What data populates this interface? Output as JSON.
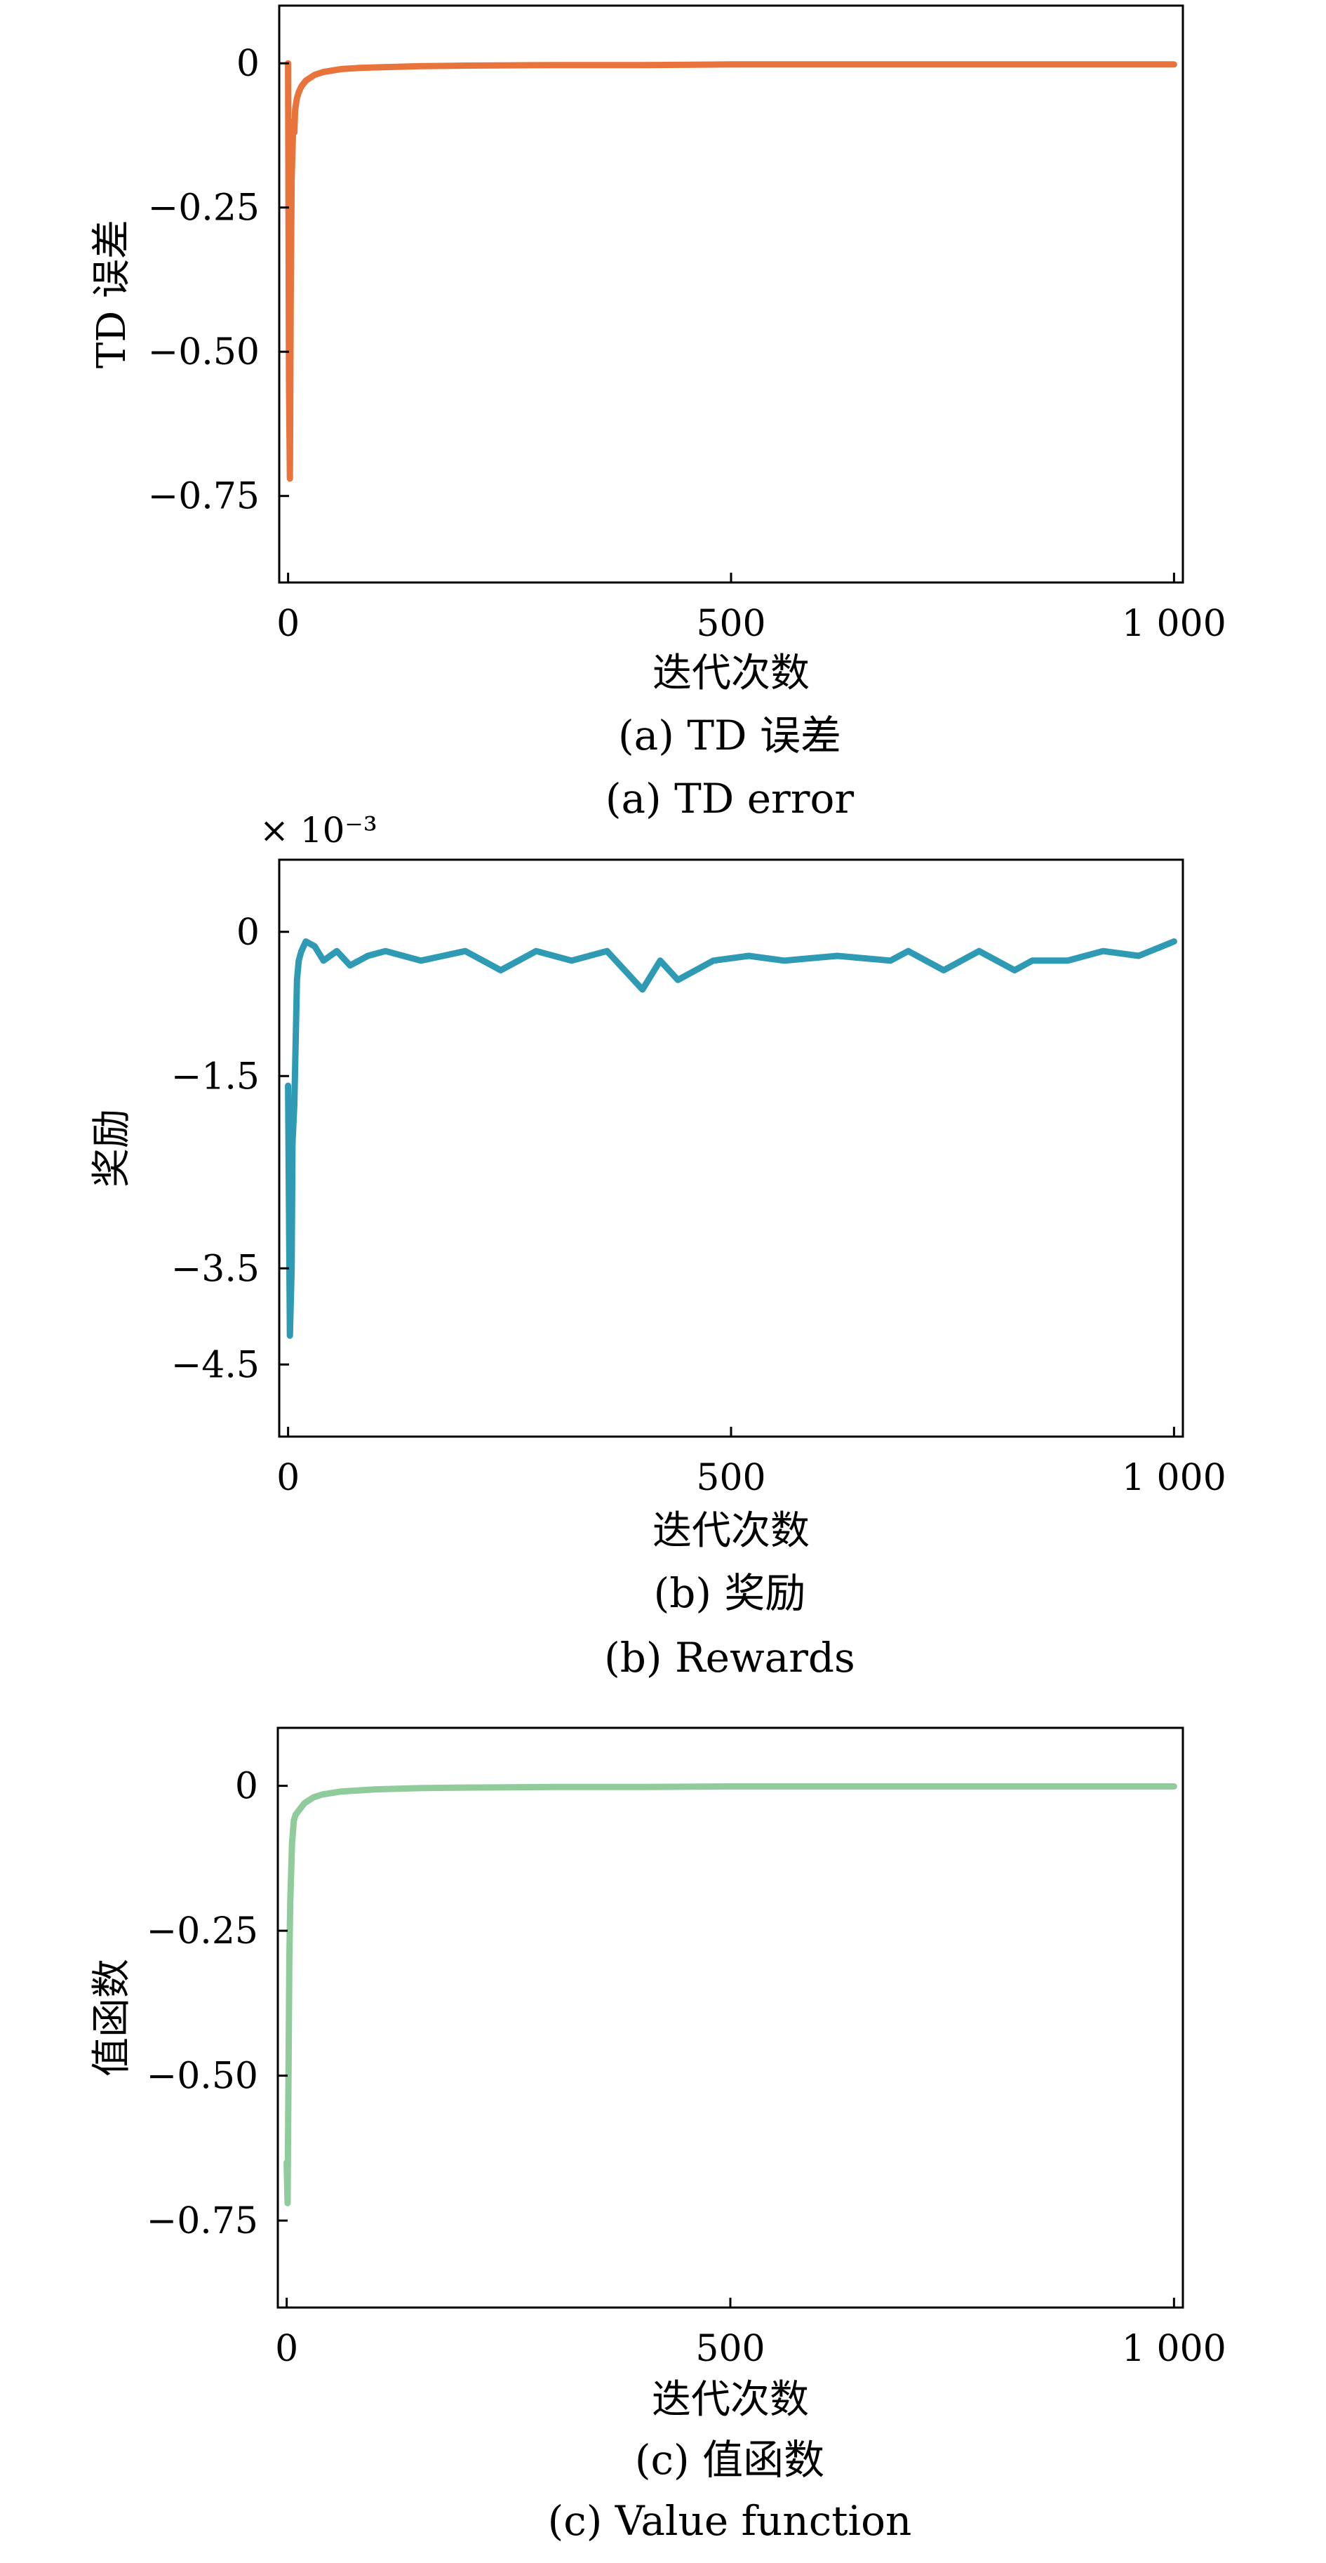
{
  "figure": {
    "panels": [
      {
        "id": "td",
        "caption_zh": "(a) TD 误差",
        "caption_en": "(a) TD error",
        "exponent_label": ""
      },
      {
        "id": "reward",
        "caption_zh": "(b) 奖励",
        "caption_en": "(b) Rewards",
        "exponent_label": "× 10⁻³"
      },
      {
        "id": "value",
        "caption_zh": "(c) 值函数",
        "caption_en": "(c) Value function",
        "exponent_label": ""
      }
    ]
  },
  "chart_data": [
    {
      "type": "line",
      "title": "",
      "xlabel": "迭代次数",
      "ylabel": "TD 误差",
      "xlim": [
        -10,
        1010
      ],
      "ylim": [
        -0.9,
        0.1
      ],
      "xticks": [
        0,
        500,
        1000
      ],
      "xtick_labels": [
        "0",
        "500",
        "1 000"
      ],
      "yticks": [
        0,
        -0.25,
        -0.5,
        -0.75
      ],
      "ytick_labels": [
        "0",
        "−0.25",
        "−0.50",
        "−0.75"
      ],
      "grid": false,
      "series": [
        {
          "color": "#E8743B",
          "x": [
            0,
            1,
            2,
            3,
            4,
            5,
            6,
            7,
            8,
            10,
            12,
            15,
            20,
            30,
            40,
            60,
            80,
            100,
            150,
            200,
            300,
            400,
            500,
            600,
            700,
            800,
            900,
            1000
          ],
          "y": [
            0,
            -0.55,
            -0.72,
            -0.4,
            -0.2,
            -0.15,
            -0.1,
            -0.12,
            -0.08,
            -0.06,
            -0.05,
            -0.04,
            -0.03,
            -0.02,
            -0.015,
            -0.01,
            -0.008,
            -0.007,
            -0.005,
            -0.004,
            -0.003,
            -0.003,
            -0.002,
            -0.002,
            -0.002,
            -0.002,
            -0.002,
            -0.002
          ]
        }
      ]
    },
    {
      "type": "line",
      "title": "",
      "xlabel": "迭代次数",
      "ylabel": "奖励",
      "ylabel_scale": "× 10⁻³",
      "xlim": [
        -10,
        1010
      ],
      "ylim": [
        -5.25,
        0.75
      ],
      "xticks": [
        0,
        500,
        1000
      ],
      "xtick_labels": [
        "0",
        "500",
        "1 000"
      ],
      "yticks": [
        0,
        -1.5,
        -3.5,
        -4.5
      ],
      "ytick_labels": [
        "0",
        "−1.5",
        "−3.5",
        "−4.5"
      ],
      "grid": false,
      "series": [
        {
          "color": "#2E9AB3",
          "x": [
            0,
            2,
            4,
            5,
            7,
            8,
            10,
            12,
            15,
            20,
            30,
            40,
            55,
            70,
            90,
            110,
            150,
            200,
            240,
            280,
            320,
            360,
            400,
            420,
            440,
            480,
            520,
            560,
            620,
            680,
            700,
            740,
            780,
            820,
            840,
            880,
            920,
            960,
            1000
          ],
          "y": [
            -1.6,
            -4.2,
            -3.5,
            -2.2,
            -1.8,
            -1.4,
            -0.5,
            -0.3,
            -0.2,
            -0.1,
            -0.15,
            -0.3,
            -0.2,
            -0.35,
            -0.25,
            -0.2,
            -0.3,
            -0.2,
            -0.4,
            -0.2,
            -0.3,
            -0.2,
            -0.6,
            -0.3,
            -0.5,
            -0.3,
            -0.25,
            -0.3,
            -0.25,
            -0.3,
            -0.2,
            -0.4,
            -0.2,
            -0.4,
            -0.3,
            -0.3,
            -0.2,
            -0.25,
            -0.1
          ]
        }
      ]
    },
    {
      "type": "line",
      "title": "",
      "xlabel": "迭代次数",
      "ylabel": "值函数",
      "xlim": [
        -10,
        1010
      ],
      "ylim": [
        -0.9,
        0.1
      ],
      "xticks": [
        0,
        500,
        1000
      ],
      "xtick_labels": [
        "0",
        "500",
        "1 000"
      ],
      "yticks": [
        0,
        -0.25,
        -0.5,
        -0.75
      ],
      "ytick_labels": [
        "0",
        "−0.25",
        "−0.50",
        "−0.75"
      ],
      "grid": false,
      "series": [
        {
          "color": "#8FCB9B",
          "x": [
            0,
            1,
            2,
            3,
            4,
            5,
            6,
            8,
            10,
            15,
            20,
            30,
            40,
            60,
            80,
            100,
            150,
            200,
            300,
            400,
            500,
            600,
            700,
            800,
            900,
            1000
          ],
          "y": [
            -0.65,
            -0.72,
            -0.5,
            -0.3,
            -0.2,
            -0.15,
            -0.1,
            -0.06,
            -0.05,
            -0.04,
            -0.03,
            -0.02,
            -0.015,
            -0.01,
            -0.008,
            -0.006,
            -0.004,
            -0.003,
            -0.002,
            -0.002,
            -0.001,
            -0.001,
            -0.001,
            -0.001,
            -0.001,
            -0.001
          ]
        }
      ]
    }
  ]
}
